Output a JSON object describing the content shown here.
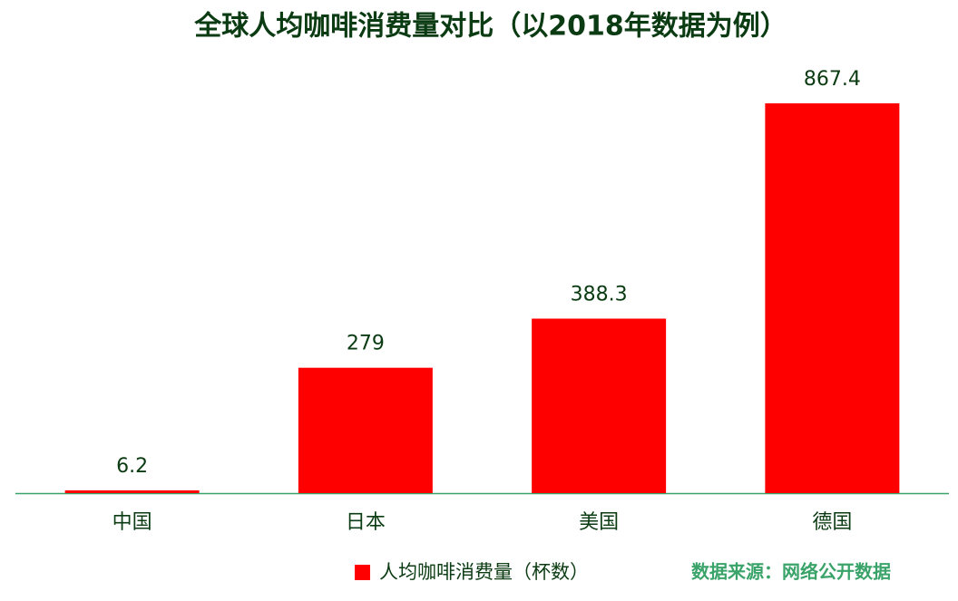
{
  "chart_data": {
    "type": "bar",
    "title": "全球人均咖啡消费量对比（以2018年数据为例）",
    "categories": [
      "中国",
      "日本",
      "美国",
      "德国"
    ],
    "series": [
      {
        "name": "人均咖啡消费量（杯数）",
        "color": "#ff0000",
        "values": [
          6.2,
          279,
          388.3,
          867.4
        ]
      }
    ],
    "source": "数据来源：网络公开数据"
  }
}
